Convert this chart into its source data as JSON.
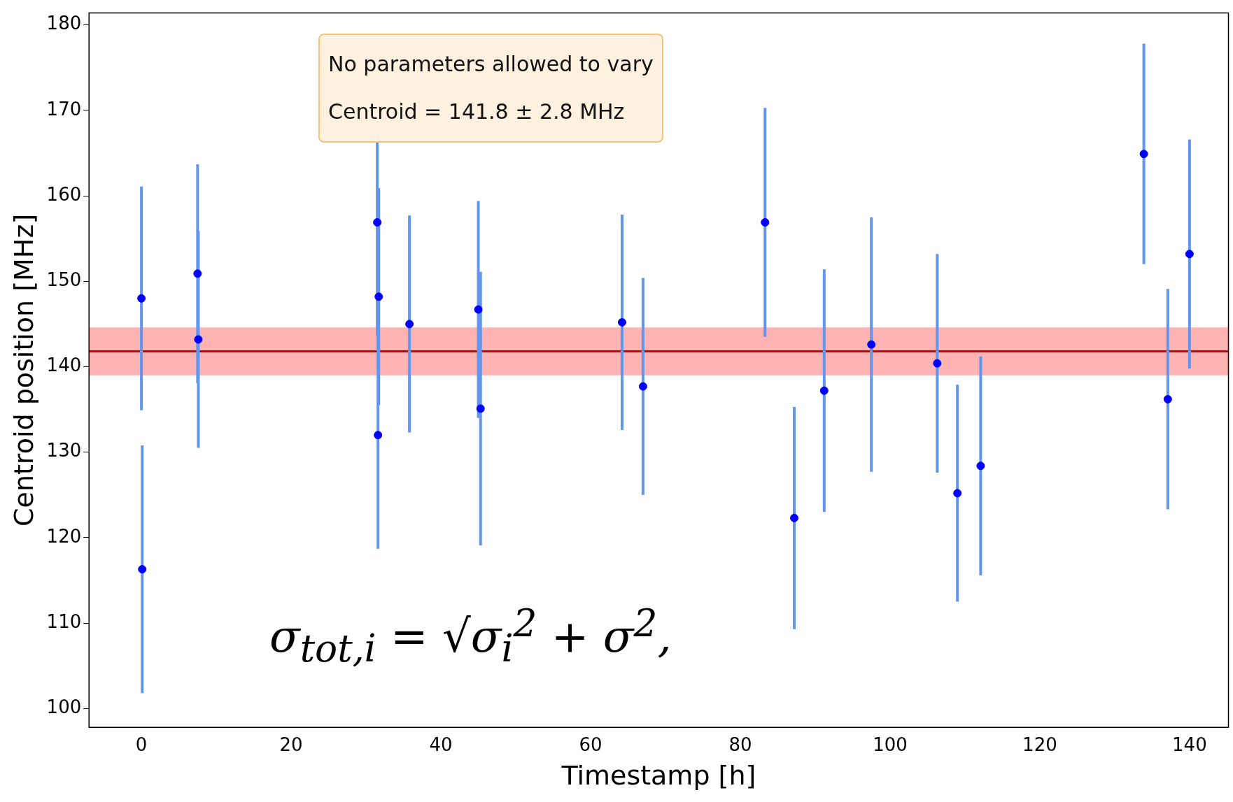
{
  "chart_data": {
    "type": "scatter",
    "xlabel": "Timestamp [h]",
    "ylabel": "Centroid position [MHz]",
    "x": [
      0,
      0.1,
      7.5,
      7.6,
      31.5,
      31.6,
      31.7,
      35.8,
      45.0,
      45.3,
      64.2,
      67.0,
      83.3,
      87.2,
      91.2,
      97.5,
      106.3,
      109.0,
      112.1,
      133.9,
      137.1,
      140.0
    ],
    "series": [
      {
        "color": "#0000ff",
        "values": [
          148.0,
          116.3,
          150.9,
          143.2,
          156.9,
          132.0,
          148.2,
          145.0,
          146.7,
          135.1,
          145.2,
          137.7,
          156.9,
          122.3,
          137.2,
          142.6,
          140.4,
          125.2,
          128.4,
          164.9,
          136.2,
          153.2
        ],
        "errors": [
          13.1,
          14.5,
          12.8,
          12.7,
          13.3,
          13.3,
          12.7,
          12.7,
          12.7,
          16.0,
          12.6,
          12.7,
          13.4,
          13.0,
          14.2,
          14.9,
          12.8,
          12.7,
          12.8,
          12.9,
          12.9,
          13.4
        ]
      }
    ],
    "xlim": [
      -7,
      145.2
    ],
    "xticks": [
      0,
      20,
      40,
      60,
      80,
      100,
      120,
      140
    ],
    "ylim": [
      97.8,
      181.4
    ],
    "yticks": [
      100,
      110,
      120,
      130,
      140,
      150,
      160,
      170,
      180
    ],
    "ref_lines": [
      {
        "axis": "y",
        "value": 141.8,
        "color": "#cc0000"
      }
    ],
    "bands": [
      {
        "axis": "y",
        "from": 139.0,
        "to": 144.6,
        "color": "#ffb3b3"
      }
    ],
    "marker": "circle",
    "grid": false,
    "legend": false,
    "annotations": [
      "No parameters allowed to vary",
      "Centroid = 141.8 ± 2.8 MHz",
      "σ$_{tot,i}$ = √σ$_{i}$$^{2}$ + σ$^{2}$,"
    ]
  }
}
